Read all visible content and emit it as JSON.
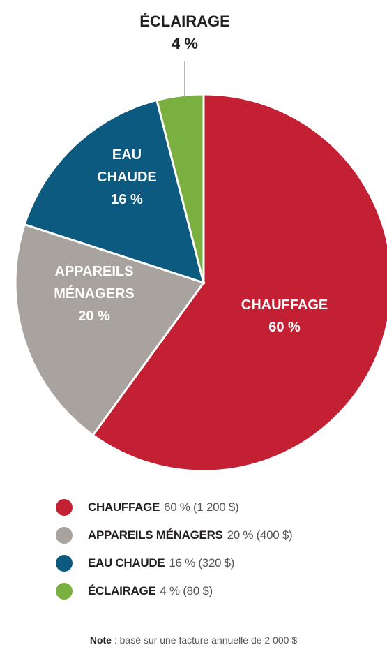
{
  "chart_data": {
    "type": "pie",
    "slices": [
      {
        "key": "chauffage",
        "label_lines": [
          "CHAUFFAGE",
          "60 %"
        ],
        "value": 60,
        "color": "#c42033"
      },
      {
        "key": "appareils",
        "label_lines": [
          "APPAREILS",
          "MÉNAGERS",
          "20 %"
        ],
        "value": 20,
        "color": "#a8a39e"
      },
      {
        "key": "eau",
        "label_lines": [
          "EAU",
          "CHAUDE",
          "16 %"
        ],
        "value": 16,
        "color": "#0c5a80"
      },
      {
        "key": "eclairage",
        "label_lines": [
          "ÉCLAIRAGE",
          "4 %"
        ],
        "value": 4,
        "color": "#7ab040"
      }
    ]
  },
  "legend": {
    "items": [
      {
        "name": "CHAUFFAGE",
        "detail": "60 % (1 200 $)",
        "color": "#c42033"
      },
      {
        "name": "APPAREILS MÉNAGERS",
        "detail": "20 % (400 $)",
        "color": "#a8a39e"
      },
      {
        "name": "EAU CHAUDE",
        "detail": "16 % (320 $)",
        "color": "#0c5a80"
      },
      {
        "name": "ÉCLAIRAGE",
        "detail": "4 % (80 $)",
        "color": "#7ab040"
      }
    ]
  },
  "note": {
    "label": "Note",
    "text": " : basé sur une facture annuelle de 2 000 $"
  }
}
